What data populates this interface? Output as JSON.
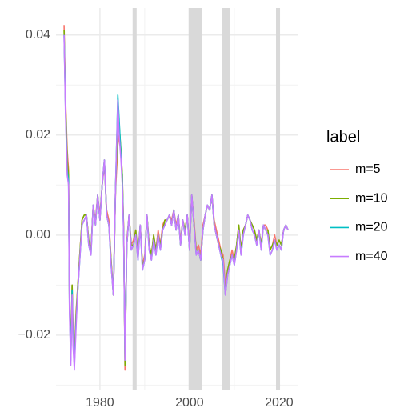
{
  "chart_data": {
    "type": "line",
    "x": [
      1972.0,
      1972.3,
      1972.7,
      1973.0,
      1973.2,
      1973.5,
      1973.8,
      1974.0,
      1974.3,
      1974.7,
      1975.0,
      1975.5,
      1976.0,
      1976.5,
      1977.0,
      1977.5,
      1978.0,
      1978.5,
      1979.0,
      1979.5,
      1980.0,
      1980.5,
      1981.0,
      1981.5,
      1982.0,
      1982.5,
      1983.0,
      1983.5,
      1984.0,
      1984.3,
      1984.7,
      1985.0,
      1985.3,
      1985.6,
      1986.0,
      1986.5,
      1987.0,
      1987.5,
      1988.0,
      1988.5,
      1989.0,
      1989.5,
      1990.0,
      1990.5,
      1991.0,
      1991.5,
      1992.0,
      1992.5,
      1993.0,
      1993.5,
      1994.0,
      1994.5,
      1995.0,
      1995.5,
      1996.0,
      1996.5,
      1997.0,
      1997.5,
      1998.0,
      1998.5,
      1999.0,
      1999.5,
      2000.0,
      2000.5,
      2001.0,
      2001.5,
      2002.0,
      2002.5,
      2003.0,
      2003.5,
      2004.0,
      2004.5,
      2005.0,
      2005.5,
      2006.0,
      2006.5,
      2007.0,
      2007.5,
      2008.0,
      2008.5,
      2009.0,
      2009.5,
      2010.0,
      2010.5,
      2011.0,
      2011.5,
      2012.0,
      2012.5,
      2013.0,
      2013.5,
      2014.0,
      2014.5,
      2015.0,
      2015.5,
      2016.0,
      2016.5,
      2017.0,
      2017.5,
      2018.0,
      2018.5,
      2019.0,
      2019.5,
      2020.0,
      2020.5,
      2021.0,
      2021.5,
      2022.0
    ],
    "series": [
      {
        "name": "m=5",
        "color": "#F8766D",
        "values": [
          0.042,
          0.028,
          0.017,
          0.013,
          -0.012,
          -0.023,
          -0.01,
          -0.019,
          -0.024,
          -0.015,
          -0.011,
          -0.004,
          0.003,
          0.004,
          0.004,
          -0.001,
          -0.003,
          0.006,
          0.003,
          0.008,
          0.004,
          0.01,
          0.014,
          0.005,
          0.003,
          -0.005,
          -0.012,
          0.009,
          0.018,
          0.02,
          0.016,
          0.012,
          0.001,
          -0.027,
          -0.001,
          0.004,
          -0.002,
          -0.001,
          0.001,
          -0.004,
          0.002,
          -0.006,
          -0.004,
          0.004,
          -0.002,
          -0.004,
          0.0,
          -0.003,
          0.001,
          -0.002,
          0.002,
          0.003,
          0.003,
          0.004,
          0.003,
          0.005,
          0.002,
          0.004,
          -0.001,
          0.003,
          0.001,
          0.004,
          -0.002,
          0.008,
          0.003,
          -0.003,
          -0.002,
          -0.004,
          0.002,
          0.004,
          0.006,
          0.005,
          0.008,
          0.003,
          0.001,
          -0.001,
          -0.003,
          -0.004,
          -0.01,
          -0.007,
          -0.005,
          -0.003,
          -0.005,
          -0.002,
          0.002,
          -0.003,
          0.001,
          0.002,
          0.004,
          0.003,
          0.002,
          0.001,
          -0.001,
          0.001,
          -0.002,
          0.002,
          0.002,
          0.001,
          -0.003,
          -0.002,
          0.0,
          -0.002,
          -0.001,
          -0.002,
          0.001,
          0.002,
          0.001
        ]
      },
      {
        "name": "m=10",
        "color": "#7CAE00",
        "values": [
          0.041,
          0.027,
          0.015,
          0.012,
          -0.013,
          -0.024,
          -0.01,
          -0.02,
          -0.025,
          -0.016,
          -0.011,
          -0.004,
          0.003,
          0.004,
          0.004,
          -0.001,
          -0.003,
          0.006,
          0.002,
          0.008,
          0.003,
          0.01,
          0.015,
          0.004,
          0.002,
          -0.005,
          -0.012,
          0.01,
          0.021,
          0.022,
          0.017,
          0.012,
          0.001,
          -0.026,
          -0.002,
          0.004,
          -0.002,
          -0.002,
          0.001,
          -0.004,
          0.002,
          -0.006,
          -0.005,
          0.004,
          -0.002,
          -0.004,
          0.0,
          -0.003,
          0.0,
          -0.002,
          0.001,
          0.003,
          0.003,
          0.004,
          0.002,
          0.005,
          0.001,
          0.004,
          -0.002,
          0.003,
          0.001,
          0.004,
          -0.003,
          0.008,
          0.002,
          -0.003,
          -0.003,
          -0.005,
          0.001,
          0.004,
          0.006,
          0.005,
          0.008,
          0.002,
          0.0,
          -0.002,
          -0.003,
          -0.005,
          -0.011,
          -0.007,
          -0.005,
          -0.004,
          -0.005,
          -0.002,
          0.002,
          -0.003,
          0.001,
          0.002,
          0.004,
          0.003,
          0.002,
          0.001,
          -0.001,
          0.001,
          -0.002,
          0.002,
          0.001,
          0.001,
          -0.003,
          -0.002,
          -0.001,
          -0.002,
          -0.001,
          -0.002,
          0.001,
          0.002,
          0.001
        ]
      },
      {
        "name": "m=20",
        "color": "#00BFC4",
        "values": [
          0.04,
          0.026,
          0.013,
          0.011,
          -0.014,
          -0.025,
          -0.011,
          -0.021,
          -0.026,
          -0.017,
          -0.012,
          -0.005,
          0.002,
          0.003,
          0.004,
          -0.002,
          -0.004,
          0.006,
          0.002,
          0.008,
          0.003,
          0.01,
          0.015,
          0.004,
          0.002,
          -0.006,
          -0.012,
          0.01,
          0.028,
          0.023,
          0.016,
          0.011,
          0.0,
          -0.025,
          -0.002,
          0.004,
          -0.003,
          -0.002,
          0.0,
          -0.005,
          0.002,
          -0.007,
          -0.005,
          0.004,
          -0.003,
          -0.005,
          -0.001,
          -0.004,
          0.0,
          -0.003,
          0.001,
          0.002,
          0.003,
          0.004,
          0.002,
          0.005,
          0.001,
          0.004,
          -0.002,
          0.003,
          0.0,
          0.004,
          -0.003,
          0.008,
          0.002,
          -0.004,
          -0.003,
          -0.005,
          0.001,
          0.004,
          0.006,
          0.005,
          0.008,
          0.002,
          0.0,
          -0.002,
          -0.004,
          -0.006,
          -0.012,
          -0.008,
          -0.006,
          -0.004,
          -0.006,
          -0.003,
          0.001,
          -0.004,
          0.0,
          0.002,
          0.004,
          0.003,
          0.001,
          0.0,
          -0.002,
          0.001,
          -0.003,
          0.002,
          0.001,
          0.0,
          -0.004,
          -0.003,
          -0.001,
          -0.003,
          -0.002,
          -0.003,
          0.001,
          0.002,
          0.001
        ]
      },
      {
        "name": "m=40",
        "color": "#C77CFF",
        "values": [
          0.04,
          0.025,
          0.012,
          0.01,
          -0.015,
          -0.026,
          -0.012,
          -0.022,
          -0.027,
          -0.018,
          -0.012,
          -0.005,
          0.002,
          0.003,
          0.004,
          -0.002,
          -0.004,
          0.006,
          0.002,
          0.008,
          0.003,
          0.01,
          0.015,
          0.004,
          0.002,
          -0.006,
          -0.012,
          0.01,
          0.027,
          0.02,
          0.015,
          0.01,
          0.0,
          -0.025,
          -0.002,
          0.004,
          -0.003,
          -0.002,
          0.0,
          -0.005,
          0.002,
          -0.007,
          -0.005,
          0.004,
          -0.003,
          -0.005,
          -0.001,
          -0.004,
          0.0,
          -0.003,
          0.001,
          0.002,
          0.003,
          0.004,
          0.002,
          0.005,
          0.001,
          0.004,
          -0.002,
          0.003,
          0.0,
          0.004,
          -0.003,
          0.008,
          0.002,
          -0.004,
          -0.003,
          -0.005,
          0.001,
          0.004,
          0.006,
          0.005,
          0.008,
          0.002,
          0.0,
          -0.002,
          -0.004,
          -0.005,
          -0.012,
          -0.008,
          -0.006,
          -0.004,
          -0.006,
          -0.003,
          0.001,
          -0.004,
          0.0,
          0.002,
          0.004,
          0.003,
          0.001,
          0.0,
          -0.002,
          0.001,
          -0.003,
          0.002,
          0.001,
          0.0,
          -0.004,
          -0.003,
          -0.001,
          -0.003,
          -0.002,
          -0.003,
          0.001,
          0.002,
          0.001
        ]
      }
    ],
    "shaded_regions": [
      [
        1987.3,
        1988.2
      ],
      [
        1999.8,
        2002.7
      ],
      [
        2007.3,
        2009.1
      ],
      [
        2019.3,
        2020.2
      ]
    ],
    "shade_color": "#d9d9d9",
    "xlim": [
      1970.2,
      2024.3
    ],
    "ylim": [
      -0.0309,
      0.0454
    ],
    "xticks": [
      1980,
      2000,
      2020
    ],
    "yticks": [
      0.04,
      0.02,
      {
        "value": 0,
        "label": "0.00"
      },
      {
        "value": -0.02,
        "label": "−0.02"
      }
    ],
    "minor_xticks": [
      1990,
      2010
    ],
    "minor_yticks": [
      0.03,
      0.01,
      -0.01,
      -0.03
    ],
    "grid": true,
    "legend_title": "label",
    "legend_position": "right"
  }
}
